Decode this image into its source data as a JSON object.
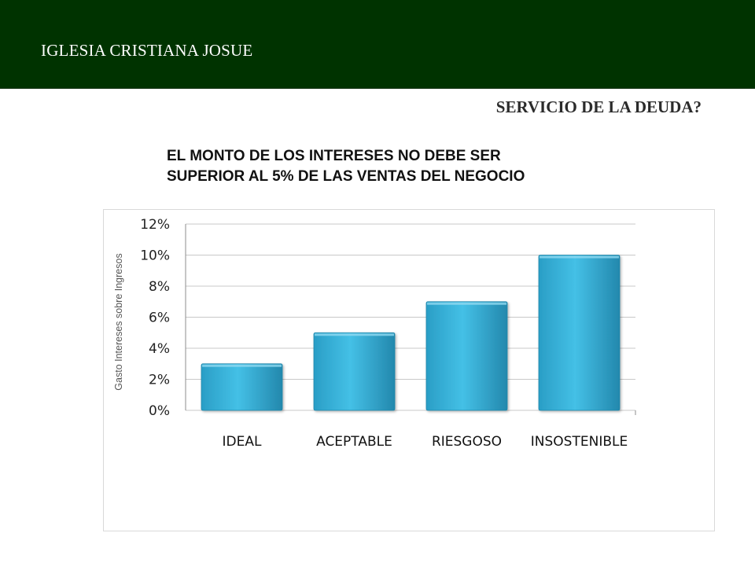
{
  "header": {
    "title": "IGLESIA CRISTIANA JOSUE"
  },
  "slide": {
    "section_title": "SERVICIO DE LA DEUDA?",
    "subtitle_lines": [
      "EL MONTO DE LOS INTERESES NO DEBE SER",
      "SUPERIOR AL 5% DE LAS VENTAS DEL NEGOCIO"
    ]
  },
  "colors": {
    "header_bg": "#003300",
    "bar_fill": "#36b3dc",
    "bar_fill_dark": "#1f8fb5",
    "grid": "#c8c8c8"
  },
  "chart_data": {
    "type": "bar",
    "categories": [
      "IDEAL",
      "ACEPTABLE",
      "RIESGOSO",
      "INSOSTENIBLE"
    ],
    "values": [
      0.03,
      0.05,
      0.07,
      0.1
    ],
    "ylabel": "Gasto Intereses sobre Ingresos",
    "xlabel": "",
    "ylim": [
      0,
      0.12
    ],
    "yticks": [
      0,
      0.02,
      0.04,
      0.06,
      0.08,
      0.1,
      0.12
    ],
    "ytick_labels": [
      "0%",
      "2%",
      "4%",
      "6%",
      "8%",
      "10%",
      "12%"
    ],
    "grid": true,
    "legend": "none"
  }
}
